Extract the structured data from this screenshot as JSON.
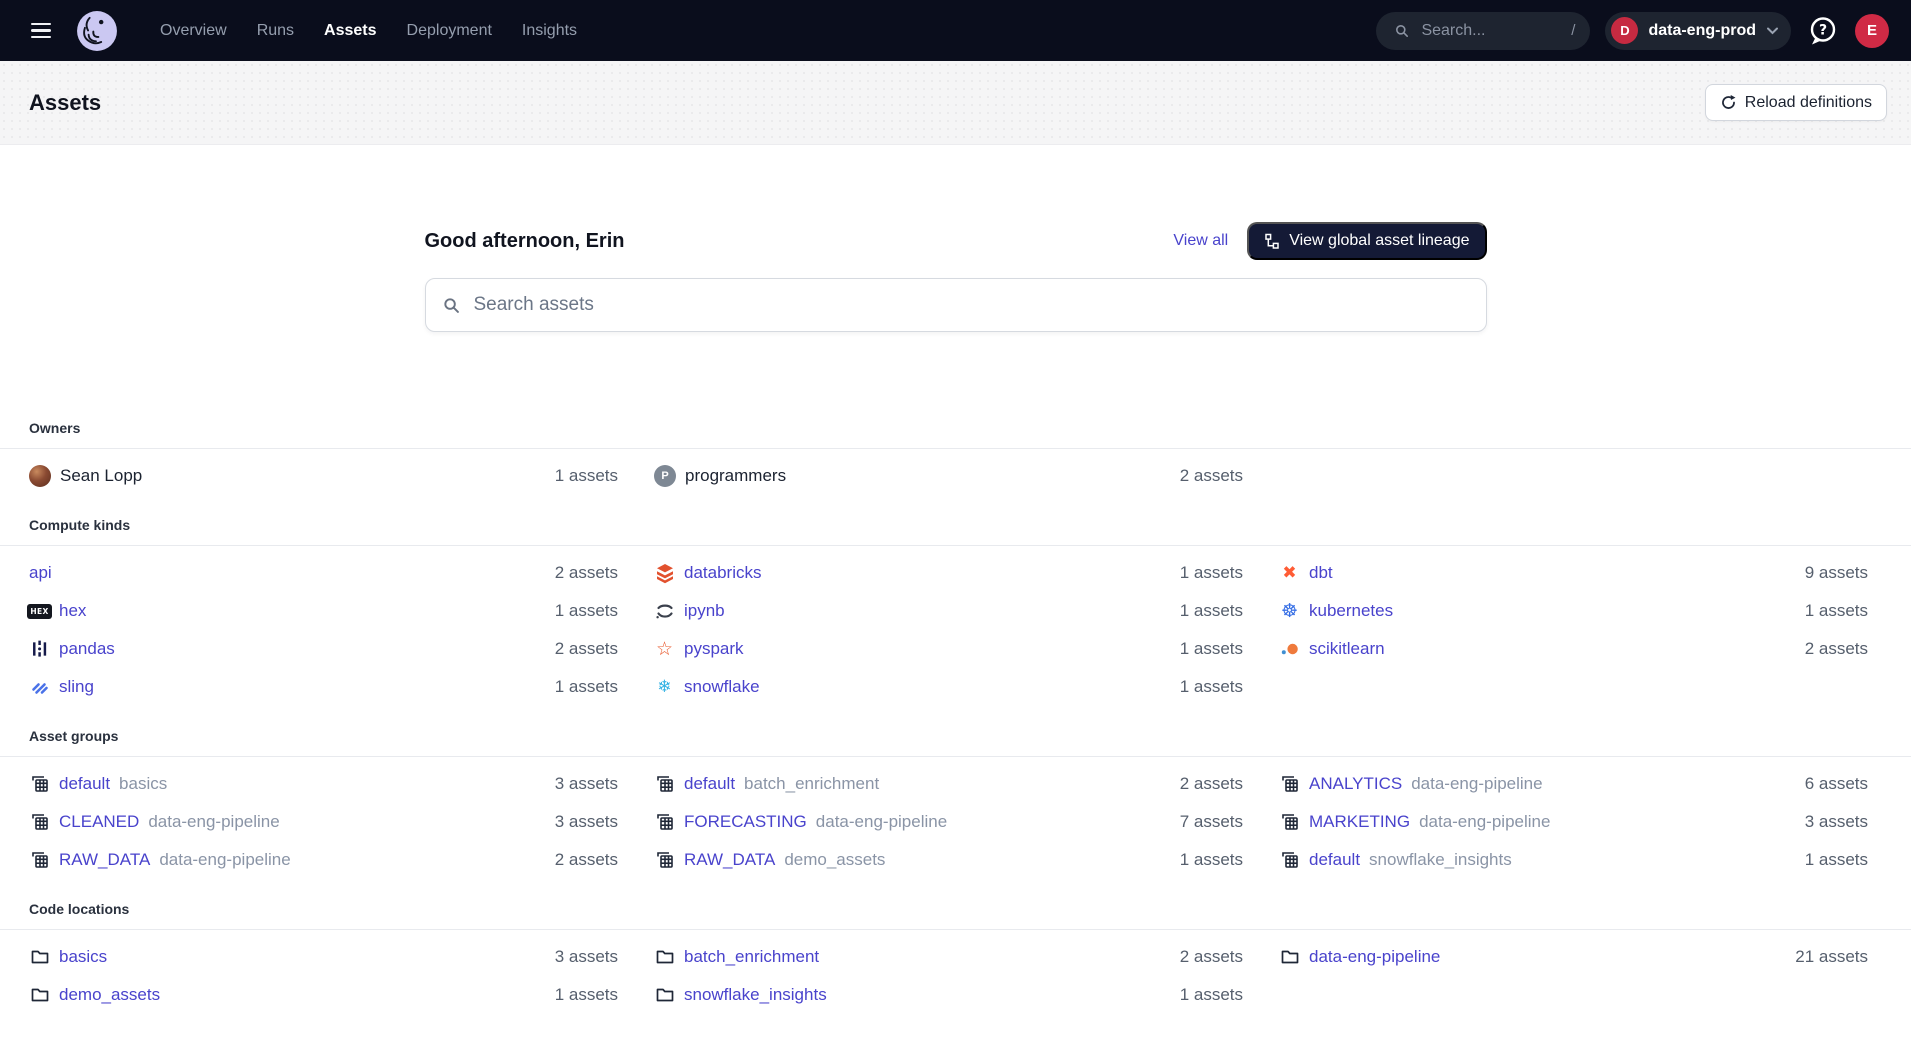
{
  "colors": {
    "topbar_bg": "#0a0d1c",
    "accent_link": "#4943cc",
    "badge_red": "#c62a41",
    "dark_button": "#141a36"
  },
  "topnav": {
    "menu_icon": "hamburger-menu-icon",
    "logo_icon": "dagster-octopus-logo",
    "items": [
      {
        "label": "Overview",
        "active": false
      },
      {
        "label": "Runs",
        "active": false
      },
      {
        "label": "Assets",
        "active": true
      },
      {
        "label": "Deployment",
        "active": false
      },
      {
        "label": "Insights",
        "active": false
      }
    ],
    "search": {
      "icon": "search-icon",
      "placeholder": "Search...",
      "shortcut": "/"
    },
    "deployment": {
      "badge_letter": "D",
      "name": "data-eng-prod",
      "chevron_icon": "chevron-down-icon"
    },
    "help_icon": "help-icon",
    "avatar_letter": "E"
  },
  "page_header": {
    "title": "Assets",
    "reload_button": {
      "icon": "reload-icon",
      "label": "Reload definitions"
    }
  },
  "hero": {
    "greeting": "Good afternoon, Erin",
    "view_all_label": "View all",
    "lineage_button": {
      "icon": "lineage-graph-icon",
      "label": "View global asset lineage"
    },
    "search": {
      "icon": "search-icon",
      "placeholder": "Search assets"
    }
  },
  "sections": [
    {
      "id": "owners",
      "title": "Owners",
      "items": [
        {
          "icon": "user-avatar",
          "label": "Sean Lopp",
          "count": "1 assets",
          "style": "plain"
        },
        {
          "icon": "team-badge",
          "badge_letter": "P",
          "label": "programmers",
          "count": "2 assets",
          "style": "plain"
        }
      ]
    },
    {
      "id": "compute-kinds",
      "title": "Compute kinds",
      "items": [
        {
          "icon": null,
          "label": "api",
          "count": "2 assets"
        },
        {
          "icon": "databricks",
          "label": "databricks",
          "count": "1 assets"
        },
        {
          "icon": "dbt",
          "label": "dbt",
          "count": "9 assets"
        },
        {
          "icon": "hex",
          "label": "hex",
          "count": "1 assets"
        },
        {
          "icon": "ipynb",
          "label": "ipynb",
          "count": "1 assets"
        },
        {
          "icon": "kubernetes",
          "label": "kubernetes",
          "count": "1 assets"
        },
        {
          "icon": "pandas",
          "label": "pandas",
          "count": "2 assets"
        },
        {
          "icon": "pyspark",
          "label": "pyspark",
          "count": "1 assets"
        },
        {
          "icon": "scikitlearn",
          "label": "scikitlearn",
          "count": "2 assets"
        },
        {
          "icon": "sling",
          "label": "sling",
          "count": "1 assets"
        },
        {
          "icon": "snowflake",
          "label": "snowflake",
          "count": "1 assets"
        }
      ]
    },
    {
      "id": "asset-groups",
      "title": "Asset groups",
      "items": [
        {
          "icon": "asset-group",
          "label": "default",
          "suffix": "basics",
          "count": "3 assets"
        },
        {
          "icon": "asset-group",
          "label": "default",
          "suffix": "batch_enrichment",
          "count": "2 assets"
        },
        {
          "icon": "asset-group",
          "label": "ANALYTICS",
          "suffix": "data-eng-pipeline",
          "count": "6 assets"
        },
        {
          "icon": "asset-group",
          "label": "CLEANED",
          "suffix": "data-eng-pipeline",
          "count": "3 assets"
        },
        {
          "icon": "asset-group",
          "label": "FORECASTING",
          "suffix": "data-eng-pipeline",
          "count": "7 assets"
        },
        {
          "icon": "asset-group",
          "label": "MARKETING",
          "suffix": "data-eng-pipeline",
          "count": "3 assets"
        },
        {
          "icon": "asset-group",
          "label": "RAW_DATA",
          "suffix": "data-eng-pipeline",
          "count": "2 assets"
        },
        {
          "icon": "asset-group",
          "label": "RAW_DATA",
          "suffix": "demo_assets",
          "count": "1 assets"
        },
        {
          "icon": "asset-group",
          "label": "default",
          "suffix": "snowflake_insights",
          "count": "1 assets"
        }
      ]
    },
    {
      "id": "code-locations",
      "title": "Code locations",
      "items": [
        {
          "icon": "folder",
          "label": "basics",
          "count": "3 assets"
        },
        {
          "icon": "folder",
          "label": "batch_enrichment",
          "count": "2 assets"
        },
        {
          "icon": "folder",
          "label": "data-eng-pipeline",
          "count": "21 assets"
        },
        {
          "icon": "folder",
          "label": "demo_assets",
          "count": "1 assets"
        },
        {
          "icon": "folder",
          "label": "snowflake_insights",
          "count": "1 assets"
        }
      ]
    }
  ]
}
